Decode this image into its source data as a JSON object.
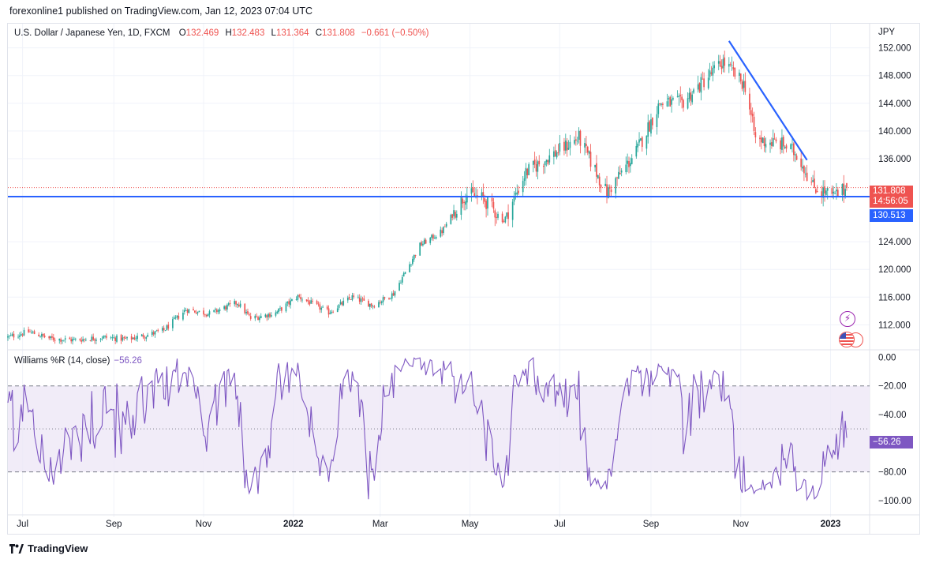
{
  "header": {
    "published": "forexonline1 published on TradingView.com, Jan 12, 2023 07:04 UTC"
  },
  "legend": {
    "symbol": "U.S. Dollar / Japanese Yen, 1D, FXCM",
    "open_label": "O",
    "open": "132.469",
    "high_label": "H",
    "high": "132.483",
    "low_label": "L",
    "low": "131.364",
    "close_label": "C",
    "close": "131.808",
    "change": "−0.661 (−0.50%)"
  },
  "indicator": {
    "name": "Williams %R (14, close)",
    "value": "−56.26"
  },
  "axis": {
    "currency": "JPY"
  },
  "tags": {
    "last_price": "131.808",
    "countdown": "14:56:05",
    "hline": "130.513",
    "wr_value": "−56.26"
  },
  "footer": {
    "brand": "TradingView"
  },
  "colors": {
    "up": "#26a69a",
    "down": "#ef5350",
    "trendline": "#2962ff",
    "wr_line": "#7e57c2",
    "wr_band": "#ede7f6",
    "price_tag": "#ef5350",
    "hline_tag": "#2962ff",
    "wr_tag": "#7e57c2"
  },
  "icons": [
    "lightning-icon",
    "us-flag-icon"
  ],
  "chart_data": [
    {
      "type": "candlestick",
      "title": "U.S. Dollar / Japanese Yen, 1D, FXCM",
      "x_range": [
        "2021-06-21",
        "2023-01-12"
      ],
      "xticks": [
        "Jul",
        "Sep",
        "Nov",
        "2022",
        "Mar",
        "May",
        "Jul",
        "Sep",
        "Nov",
        "2023"
      ],
      "ylim": [
        108.5,
        155.5
      ],
      "yticks": [
        "152.000",
        "148.000",
        "144.000",
        "140.000",
        "136.000",
        "124.000",
        "120.000",
        "116.000",
        "112.000"
      ],
      "close_path": [
        {
          "date": "2021-06-21",
          "close": 110.2
        },
        {
          "date": "2021-07-05",
          "close": 111.0
        },
        {
          "date": "2021-07-20",
          "close": 110.0
        },
        {
          "date": "2021-08-05",
          "close": 109.8
        },
        {
          "date": "2021-08-25",
          "close": 110.2
        },
        {
          "date": "2021-09-10",
          "close": 109.9
        },
        {
          "date": "2021-09-25",
          "close": 110.6
        },
        {
          "date": "2021-10-05",
          "close": 111.2
        },
        {
          "date": "2021-10-20",
          "close": 114.2
        },
        {
          "date": "2021-11-05",
          "close": 113.6
        },
        {
          "date": "2021-11-24",
          "close": 115.2
        },
        {
          "date": "2021-12-03",
          "close": 112.9
        },
        {
          "date": "2021-12-20",
          "close": 113.7
        },
        {
          "date": "2022-01-04",
          "close": 116.1
        },
        {
          "date": "2022-01-25",
          "close": 113.8
        },
        {
          "date": "2022-02-10",
          "close": 116.0
        },
        {
          "date": "2022-02-24",
          "close": 114.8
        },
        {
          "date": "2022-03-10",
          "close": 116.5
        },
        {
          "date": "2022-03-28",
          "close": 123.5
        },
        {
          "date": "2022-04-12",
          "close": 125.5
        },
        {
          "date": "2022-04-28",
          "close": 130.9
        },
        {
          "date": "2022-05-10",
          "close": 130.2
        },
        {
          "date": "2022-05-24",
          "close": 127.0
        },
        {
          "date": "2022-06-08",
          "close": 134.0
        },
        {
          "date": "2022-06-22",
          "close": 136.0
        },
        {
          "date": "2022-07-14",
          "close": 139.0
        },
        {
          "date": "2022-08-02",
          "close": 131.0
        },
        {
          "date": "2022-08-22",
          "close": 137.0
        },
        {
          "date": "2022-09-07",
          "close": 144.0
        },
        {
          "date": "2022-09-22",
          "close": 144.0
        },
        {
          "date": "2022-10-20",
          "close": 150.0
        },
        {
          "date": "2022-11-04",
          "close": 146.5
        },
        {
          "date": "2022-11-11",
          "close": 138.8
        },
        {
          "date": "2022-11-30",
          "close": 138.0
        },
        {
          "date": "2022-12-10",
          "close": 136.5
        },
        {
          "date": "2022-12-20",
          "close": 132.0
        },
        {
          "date": "2023-01-03",
          "close": 130.5
        },
        {
          "date": "2023-01-12",
          "close": 131.8
        }
      ],
      "annotations": [
        {
          "type": "trendline",
          "from": {
            "date": "2022-10-24",
            "value": 153.0
          },
          "to": {
            "date": "2022-12-16",
            "value": 135.8
          }
        },
        {
          "type": "horizontal_line",
          "value": 130.513
        }
      ],
      "last_price": 131.808
    },
    {
      "type": "line",
      "title": "Williams %R (14, close)",
      "ylim": [
        -105,
        3
      ],
      "yticks": [
        "0.00",
        "−20.00",
        "−40.00",
        "−80.00",
        "−100.00"
      ],
      "bands": [
        -20,
        -80
      ],
      "midline": -50,
      "last_value": -56.26
    }
  ]
}
